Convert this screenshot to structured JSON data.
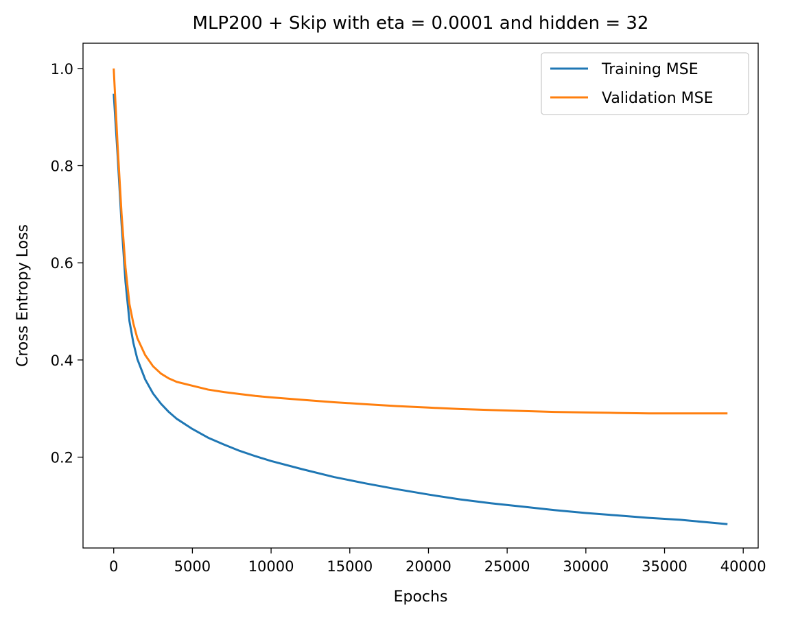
{
  "chart_data": {
    "type": "line",
    "title": "MLP200 + Skip with eta = 0.0001 and hidden = 32",
    "xlabel": "Epochs",
    "ylabel": "Cross Entropy Loss",
    "xlim": [
      -1950,
      40950
    ],
    "ylim": [
      0.013,
      1.052
    ],
    "xticks": [
      0,
      5000,
      10000,
      15000,
      20000,
      25000,
      30000,
      35000,
      40000
    ],
    "xtick_labels": [
      "0",
      "5000",
      "10000",
      "15000",
      "20000",
      "25000",
      "30000",
      "35000",
      "40000"
    ],
    "yticks": [
      0.2,
      0.4,
      0.6,
      0.8,
      1.0
    ],
    "ytick_labels": [
      "0.2",
      "0.4",
      "0.6",
      "0.8",
      "1.0"
    ],
    "grid": false,
    "legend_position": "top-right",
    "series": [
      {
        "name": "Training MSE",
        "color": "#1f77b4",
        "x": [
          0,
          250,
          500,
          750,
          1000,
          1250,
          1500,
          2000,
          2500,
          3000,
          3500,
          4000,
          5000,
          6000,
          7000,
          8000,
          9000,
          10000,
          12000,
          14000,
          16000,
          18000,
          20000,
          22000,
          24000,
          26000,
          28000,
          30000,
          32000,
          34000,
          36000,
          38000,
          39000
        ],
        "y": [
          0.948,
          0.82,
          0.68,
          0.56,
          0.48,
          0.435,
          0.402,
          0.36,
          0.331,
          0.31,
          0.293,
          0.279,
          0.258,
          0.24,
          0.226,
          0.213,
          0.202,
          0.192,
          0.175,
          0.159,
          0.146,
          0.134,
          0.123,
          0.113,
          0.105,
          0.098,
          0.091,
          0.085,
          0.08,
          0.075,
          0.071,
          0.065,
          0.062
        ]
      },
      {
        "name": "Validation MSE",
        "color": "#ff7f0e",
        "x": [
          0,
          250,
          500,
          750,
          1000,
          1250,
          1500,
          2000,
          2500,
          3000,
          3500,
          4000,
          5000,
          6000,
          7000,
          8000,
          9000,
          10000,
          12000,
          14000,
          16000,
          18000,
          20000,
          22000,
          24000,
          26000,
          28000,
          30000,
          32000,
          34000,
          36000,
          38000,
          39000
        ],
        "y": [
          1.0,
          0.84,
          0.7,
          0.59,
          0.515,
          0.475,
          0.445,
          0.41,
          0.387,
          0.372,
          0.362,
          0.355,
          0.347,
          0.339,
          0.334,
          0.33,
          0.326,
          0.323,
          0.318,
          0.313,
          0.309,
          0.305,
          0.302,
          0.299,
          0.297,
          0.295,
          0.293,
          0.292,
          0.291,
          0.29,
          0.29,
          0.29,
          0.29
        ]
      }
    ]
  }
}
